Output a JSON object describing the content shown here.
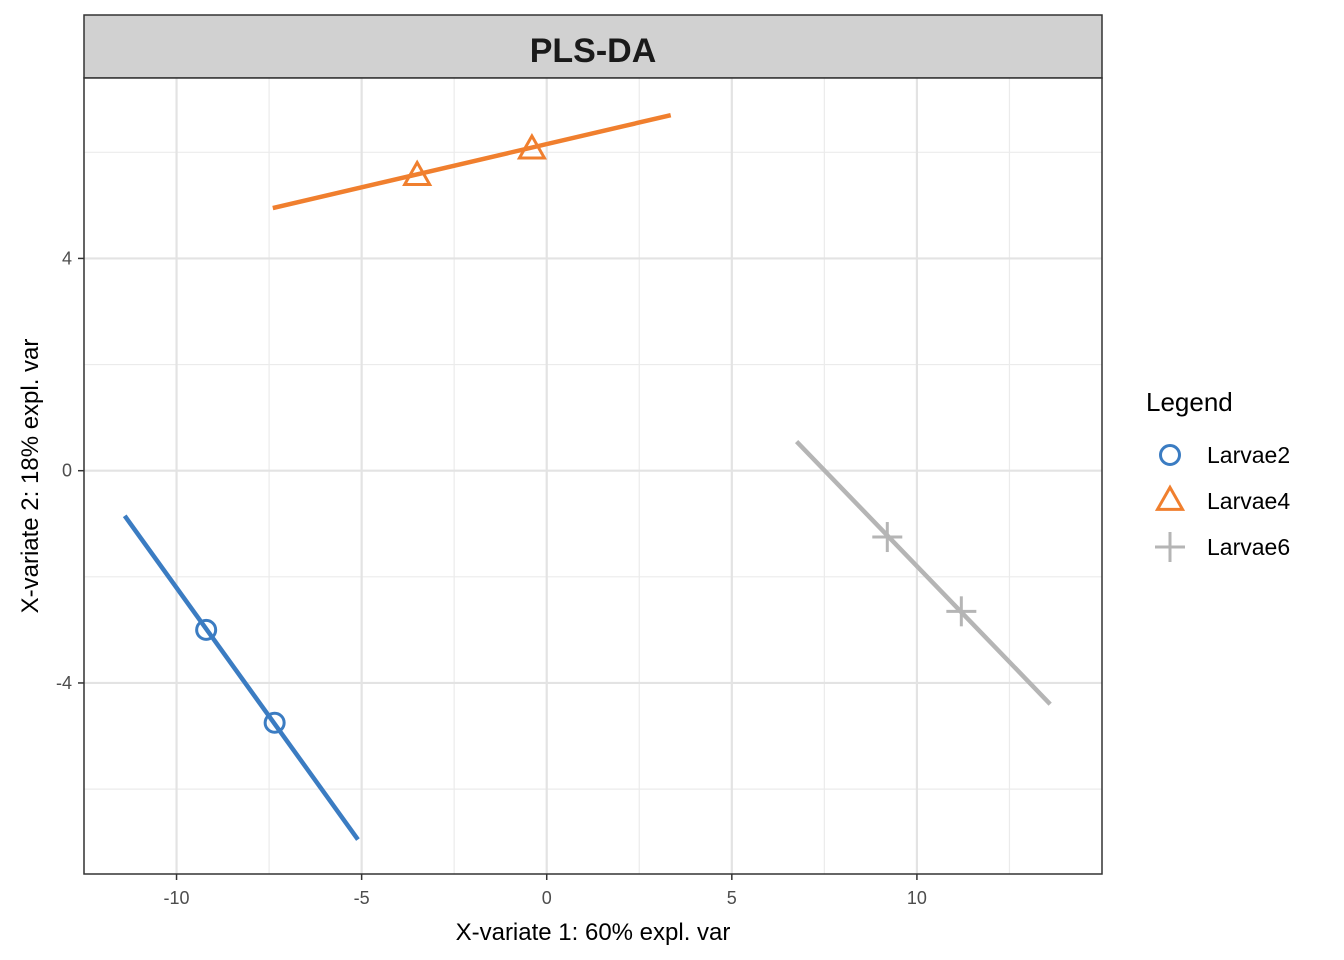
{
  "chart_data": {
    "type": "scatter",
    "title": "PLS-DA",
    "xlabel": "X-variate 1: 60% expl. var",
    "ylabel": "X-variate 2: 18% expl. var",
    "xlim": [
      -12.5,
      15
    ],
    "ylim": [
      -7.6,
      7.4
    ],
    "xticks": [
      -10,
      -5,
      0,
      5,
      10
    ],
    "xtick_labels": [
      "-10",
      "-5",
      "0",
      "5",
      "10"
    ],
    "yticks": [
      -4,
      0,
      4
    ],
    "ytick_labels": [
      "-4",
      "0",
      "4"
    ],
    "grid": true,
    "legend": {
      "title": "Legend",
      "position": "right"
    },
    "series": [
      {
        "name": "Larvae2",
        "marker": "circle",
        "color": "#3B7CC2",
        "points": [
          [
            -9.2,
            -3.0
          ],
          [
            -7.35,
            -4.75
          ]
        ],
        "line": [
          [
            -11.4,
            -0.85
          ],
          [
            -5.1,
            -6.95
          ]
        ]
      },
      {
        "name": "Larvae4",
        "marker": "triangle",
        "color": "#F07F2E",
        "points": [
          [
            -3.5,
            5.55
          ],
          [
            -0.4,
            6.05
          ]
        ],
        "line": [
          [
            -7.4,
            4.95
          ],
          [
            3.35,
            6.7
          ]
        ]
      },
      {
        "name": "Larvae6",
        "marker": "cross",
        "color": "#B5B5B5",
        "points": [
          [
            9.2,
            -1.25
          ],
          [
            11.2,
            -2.65
          ]
        ],
        "line": [
          [
            6.75,
            0.55
          ],
          [
            13.6,
            -4.4
          ]
        ]
      }
    ]
  }
}
